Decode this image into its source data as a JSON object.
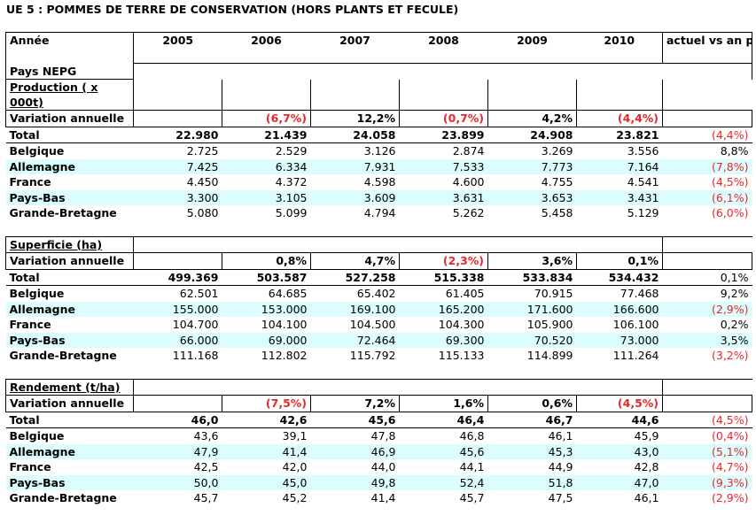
{
  "title": "UE 5 : POMMES DE TERRE DE CONSERVATION (HORS PLANTS ET FECULE)",
  "header": {
    "annee": "Année",
    "years": [
      "2005",
      "2006",
      "2007",
      "2008",
      "2009",
      "2010"
    ],
    "actuel": "actuel vs an passé",
    "pays": "Pays NEPG"
  },
  "sections": [
    {
      "title": "Production ( x 000t)",
      "variation_label": "Variation annuelle",
      "variation": [
        "",
        "(6,7%)",
        "12,2%",
        "(0,7%)",
        "4,2%",
        "(4,4%)"
      ],
      "rows": [
        {
          "name": "Total",
          "values": [
            "22.980",
            "21.439",
            "24.058",
            "23.899",
            "24.908",
            "23.821"
          ],
          "change": "(4,4%)"
        },
        {
          "name": "Belgique",
          "values": [
            "2.725",
            "2.529",
            "3.126",
            "2.874",
            "3.269",
            "3.556"
          ],
          "change": "8,8%"
        },
        {
          "name": "Allemagne",
          "values": [
            "7.425",
            "6.334",
            "7.931",
            "7.533",
            "7.773",
            "7.164"
          ],
          "change": "(7,8%)"
        },
        {
          "name": "France",
          "values": [
            "4.450",
            "4.372",
            "4.598",
            "4.600",
            "4.755",
            "4.541"
          ],
          "change": "(4,5%)"
        },
        {
          "name": "Pays-Bas",
          "values": [
            "3.300",
            "3.105",
            "3.609",
            "3.631",
            "3.653",
            "3.431"
          ],
          "change": "(6,1%)"
        },
        {
          "name": "Grande-Bretagne",
          "values": [
            "5.080",
            "5.099",
            "4.794",
            "5.262",
            "5.458",
            "5.129"
          ],
          "change": "(6,0%)"
        }
      ]
    },
    {
      "title": "Superficie (ha)",
      "variation_label": "Variation annuelle",
      "variation": [
        "",
        "0,8%",
        "4,7%",
        "(2,3%)",
        "3,6%",
        "0,1%"
      ],
      "rows": [
        {
          "name": "Total",
          "values": [
            "499.369",
            "503.587",
            "527.258",
            "515.338",
            "533.834",
            "534.432"
          ],
          "change": "0,1%"
        },
        {
          "name": "Belgique",
          "values": [
            "62.501",
            "64.685",
            "65.402",
            "61.405",
            "70.915",
            "77.468"
          ],
          "change": "9,2%"
        },
        {
          "name": "Allemagne",
          "values": [
            "155.000",
            "153.000",
            "169.100",
            "165.200",
            "171.600",
            "166.600"
          ],
          "change": "(2,9%)"
        },
        {
          "name": "France",
          "values": [
            "104.700",
            "104.100",
            "104.500",
            "104.300",
            "105.900",
            "106.100"
          ],
          "change": "0,2%"
        },
        {
          "name": "Pays-Bas",
          "values": [
            "66.000",
            "69.000",
            "72.464",
            "69.300",
            "70.520",
            "73.000"
          ],
          "change": "3,5%"
        },
        {
          "name": "Grande-Bretagne",
          "values": [
            "111.168",
            "112.802",
            "115.792",
            "115.133",
            "114.899",
            "111.264"
          ],
          "change": "(3,2%)"
        }
      ]
    },
    {
      "title": "Rendement (t/ha)",
      "variation_label": "Variation annuelle",
      "variation": [
        "",
        "(7,5%)",
        "7,2%",
        "1,6%",
        "0,6%",
        "(4,5%)"
      ],
      "rows": [
        {
          "name": "Total",
          "values": [
            "46,0",
            "42,6",
            "45,6",
            "46,4",
            "46,7",
            "44,6"
          ],
          "change": "(4,5%)"
        },
        {
          "name": "Belgique",
          "values": [
            "43,6",
            "39,1",
            "47,8",
            "46,8",
            "46,1",
            "45,9"
          ],
          "change": "(0,4%)"
        },
        {
          "name": "Allemagne",
          "values": [
            "47,9",
            "41,4",
            "46,9",
            "45,6",
            "45,3",
            "43,0"
          ],
          "change": "(5,1%)"
        },
        {
          "name": "France",
          "values": [
            "42,5",
            "42,0",
            "44,0",
            "44,1",
            "44,9",
            "42,8"
          ],
          "change": "(4,7%)"
        },
        {
          "name": "Pays-Bas",
          "values": [
            "50,0",
            "45,0",
            "49,8",
            "52,4",
            "51,8",
            "47,0"
          ],
          "change": "(9,3%)"
        },
        {
          "name": "Grande-Bretagne",
          "values": [
            "45,7",
            "45,2",
            "41,4",
            "45,7",
            "47,5",
            "46,1"
          ],
          "change": "(2,9%)"
        }
      ]
    }
  ],
  "colors": {
    "negative": "#e8262a",
    "band": "#dbfdfd"
  }
}
